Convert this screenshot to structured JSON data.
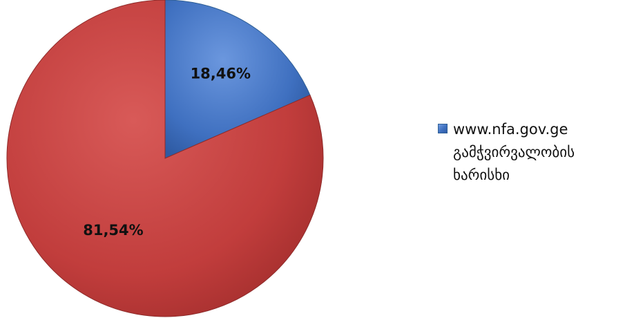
{
  "chart_data": {
    "type": "pie",
    "categories": [
      "www.nfa.gov.ge გამჭვირვალობის ხარისხი",
      ""
    ],
    "values": [
      18.46,
      81.54
    ],
    "data_labels": [
      "18,46%",
      "81,54%"
    ],
    "colors": [
      "#4677c8",
      "#c2403f"
    ],
    "legend": {
      "placement": "right",
      "entries": [
        "www.nfa.gov.ge\nგამჭვირვალობის\nხარისხი"
      ]
    },
    "start_angle_deg": 0,
    "direction": "clockwise"
  }
}
